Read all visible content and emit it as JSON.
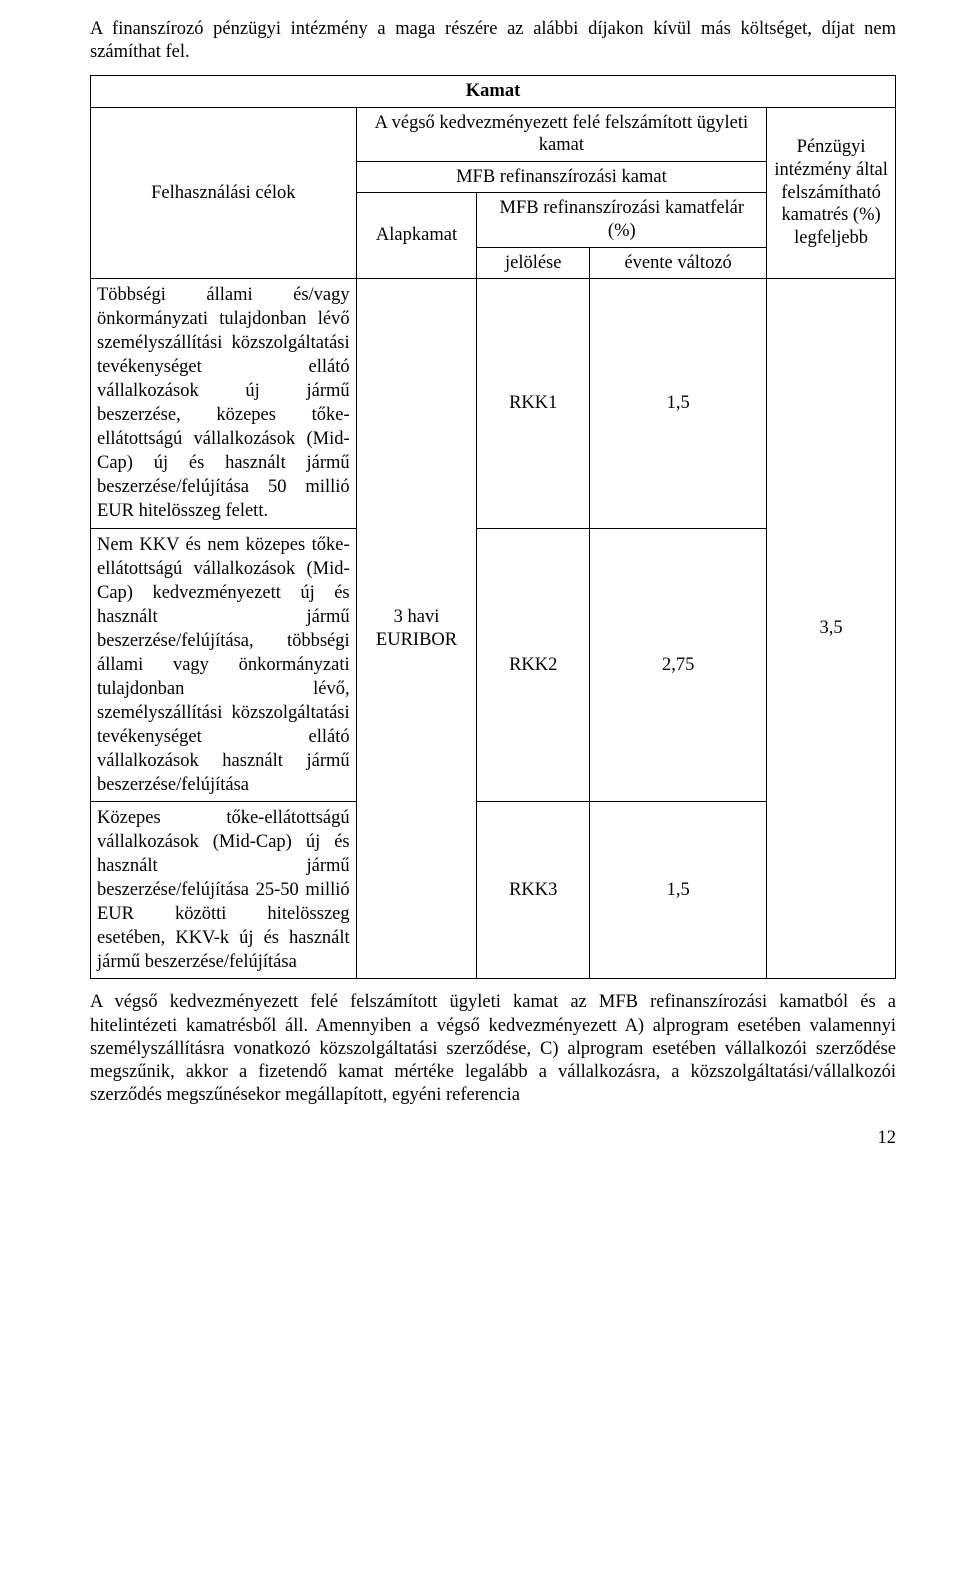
{
  "intro_text": "A finanszírozó pénzügyi intézmény a maga részére az alábbi díjakon kívül más költséget, díjat nem számíthat fel.",
  "kamat_title": "Kamat",
  "header": {
    "col_purpose": "Felhasználási célok",
    "top_merged": "A végső kedvezményezett felé felszámított ügyleti kamat",
    "mfb_refin_kamat": "MFB refinanszírozási kamat",
    "alapkamat": "Alapkamat",
    "mfb_refin_kamatfelar": "MFB refinanszírozási kamatfelár (%)",
    "jel": "jelölése",
    "evente": "évente változó",
    "fee_col": "Pénzügyi intézmény által felszámítható kamatrés (%) legfeljebb"
  },
  "rows": [
    {
      "purpose": "Többségi állami és/vagy önkormányzati tulajdonban lévő személyszállítási közszolgáltatási tevékenységet ellátó vállalkozások új jármű beszerzése, közepes tőke-ellátottságú vállalkozások (Mid-Cap) új és használt jármű beszerzése/felújítása 50 millió EUR hitelösszeg felett.",
      "mark": "RKK1",
      "value": "1,5"
    },
    {
      "purpose": "Nem KKV és nem közepes tőke-ellátottságú vállalkozások (Mid-Cap) kedvezményezett új és használt jármű beszerzése/felújítása, többségi állami vagy önkormányzati tulajdonban lévő, személyszállítási közszolgáltatási tevékenységet ellátó vállalkozások használt jármű beszerzése/felújítása",
      "mark": "RKK2",
      "value": "2,75"
    },
    {
      "purpose": "Közepes tőke-ellátottságú vállalkozások (Mid-Cap) új és használt jármű beszerzése/felújítása 25-50 millió EUR közötti hitelösszeg esetében, KKV-k új és használt jármű beszerzése/felújítása",
      "mark": "RKK3",
      "value": "1,5"
    }
  ],
  "base_rate": "3 havi EURIBOR",
  "fee_value": "3,5",
  "closing_text": "A végső kedvezményezett felé felszámított ügyleti kamat az MFB refinanszírozási kamatból és a hitelintézeti kamatrésből áll.\nAmennyiben a végső kedvezményezett A) alprogram esetében valamennyi személyszállításra vonatkozó közszolgáltatási szerződése, C) alprogram esetében vállalkozói szerződése megszűnik, akkor a fizetendő kamat mértéke legalább a vállalkozásra, a közszolgáltatási/vállalkozói szerződés megszűnésekor megállapított, egyéni referencia",
  "page_number": "12"
}
